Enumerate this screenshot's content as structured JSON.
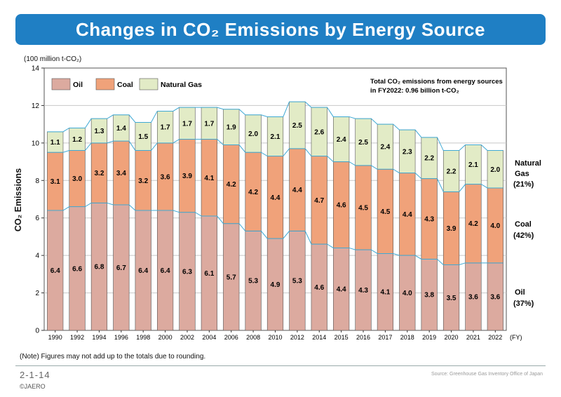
{
  "title": "Changes in CO₂ Emissions by Energy Source",
  "unit_label": "(100 million t-CO₂)",
  "ylabel": "CO₂ Emissions",
  "xunit": "(FY)",
  "annotation": {
    "line1": "Total CO₂ emissions from energy sources",
    "line2": "in FY2022: 0.96 billion t-CO₂"
  },
  "right_labels": {
    "gas_line1": "Natural",
    "gas_line2": "Gas",
    "gas_pct": "(21%)",
    "coal_line1": "Coal",
    "coal_pct": "(42%)",
    "oil_line1": "Oil",
    "oil_pct": "(37%)"
  },
  "note": "(Note) Figures may not add up to the totals due to rounding.",
  "figure_number": "2-1-14",
  "copyright": "©JAERO",
  "source": "Source: Greenhouse Gas Inventory Office of Japan",
  "colors": {
    "title_bg": "#1f7fc4",
    "oil": "#dcaa9f",
    "coal": "#f0a27a",
    "gas": "#e2ebc6",
    "connector": "#3fa9d4"
  },
  "chart_data": {
    "type": "bar",
    "stacked": true,
    "categories": [
      "1990",
      "1992",
      "1994",
      "1996",
      "1998",
      "2000",
      "2002",
      "2004",
      "2006",
      "2008",
      "2010",
      "2012",
      "2014",
      "2015",
      "2016",
      "2017",
      "2018",
      "2019",
      "2020",
      "2021",
      "2022"
    ],
    "series": [
      {
        "name": "Oil",
        "values": [
          6.4,
          6.6,
          6.8,
          6.7,
          6.4,
          6.4,
          6.3,
          6.1,
          5.7,
          5.3,
          4.9,
          5.3,
          4.6,
          4.4,
          4.3,
          4.1,
          4.0,
          3.8,
          3.5,
          3.6,
          3.6
        ]
      },
      {
        "name": "Coal",
        "values": [
          3.1,
          3.0,
          3.2,
          3.4,
          3.2,
          3.6,
          3.9,
          4.1,
          4.2,
          4.2,
          4.4,
          4.4,
          4.7,
          4.6,
          4.5,
          4.5,
          4.4,
          4.3,
          3.9,
          4.2,
          4.0
        ]
      },
      {
        "name": "Natural Gas",
        "values": [
          1.1,
          1.2,
          1.3,
          1.4,
          1.5,
          1.7,
          1.7,
          1.7,
          1.9,
          2.0,
          2.1,
          2.5,
          2.6,
          2.4,
          2.5,
          2.4,
          2.3,
          2.2,
          2.2,
          2.1,
          2.0
        ]
      }
    ],
    "ylim": [
      0,
      14
    ],
    "yticks": [
      0,
      2,
      4,
      6,
      8,
      10,
      12,
      14
    ],
    "grid": true,
    "legend_position": "top-left"
  }
}
